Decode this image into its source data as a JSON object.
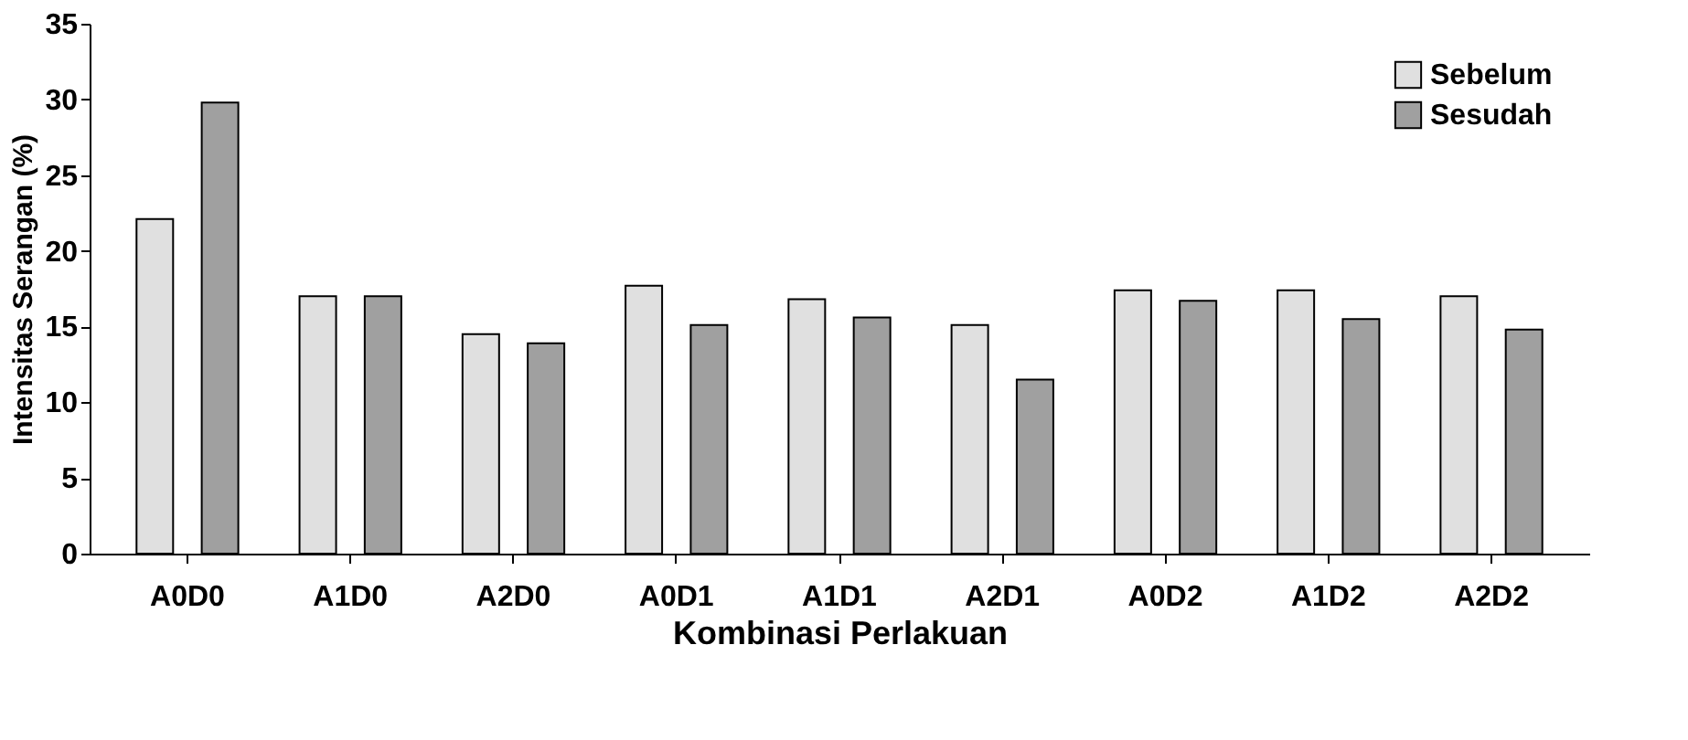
{
  "chart_data": {
    "type": "bar",
    "xlabel": "Kombinasi Perlakuan",
    "ylabel": "Intensitas Serangan (%)",
    "categories": [
      "A0D0",
      "A1D0",
      "A2D0",
      "A0D1",
      "A1D1",
      "A2D1",
      "A0D2",
      "A1D2",
      "A2D2"
    ],
    "series": [
      {
        "name": "Sebelum",
        "color": "#e0e0e0",
        "values": [
          22.1,
          17.0,
          14.5,
          17.7,
          16.8,
          15.1,
          17.4,
          17.4,
          17.0
        ]
      },
      {
        "name": "Sesudah",
        "color": "#a0a0a0",
        "values": [
          29.8,
          17.0,
          13.9,
          15.1,
          15.6,
          11.5,
          16.7,
          15.5,
          14.8
        ]
      }
    ],
    "ylim": [
      0,
      35
    ],
    "yticks": [
      0,
      5,
      10,
      15,
      20,
      25,
      30,
      35
    ],
    "grid": false,
    "legend": "top right"
  }
}
